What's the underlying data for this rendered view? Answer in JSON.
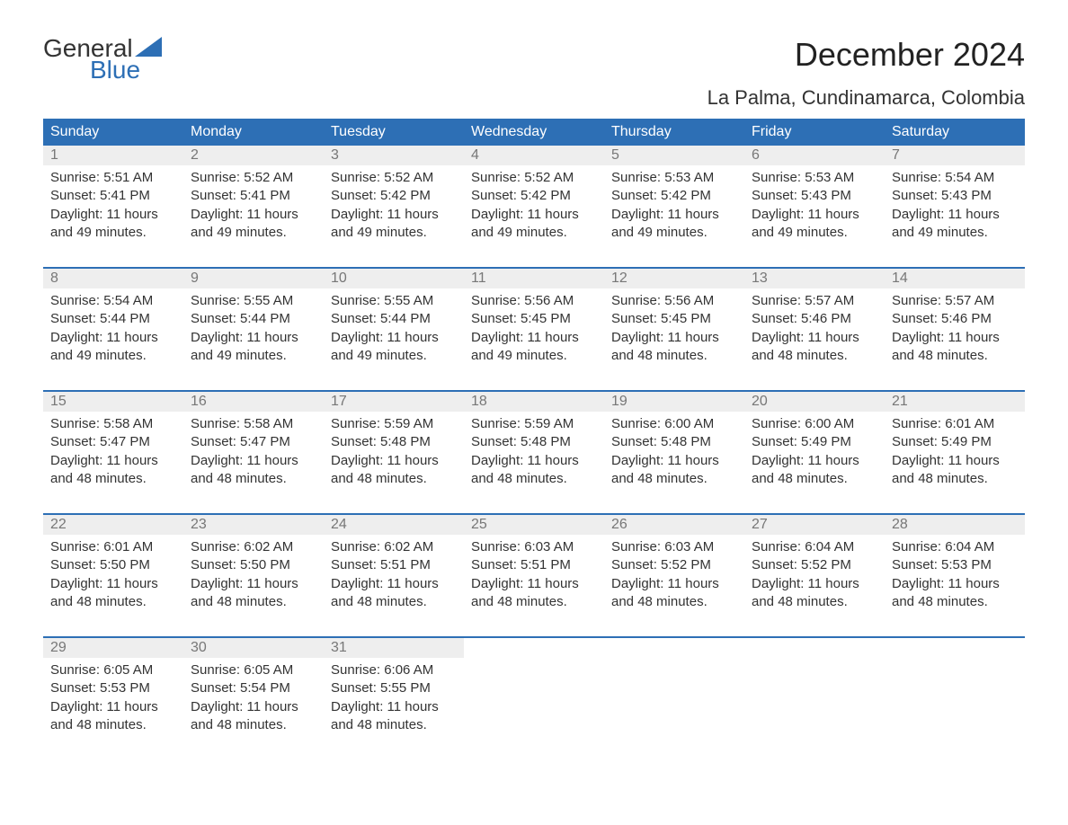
{
  "brand": {
    "part1": "General",
    "part2": "Blue",
    "sail_color": "#2d6fb5"
  },
  "title": "December 2024",
  "location": "La Palma, Cundinamarca, Colombia",
  "colors": {
    "header_bg": "#2d6fb5",
    "header_text": "#ffffff",
    "daynum_bg": "#eeeeee",
    "daynum_text": "#777777",
    "body_text": "#333333",
    "divider": "#2d6fb5",
    "page_bg": "#ffffff"
  },
  "typography": {
    "title_fontsize": 36,
    "location_fontsize": 22,
    "dow_fontsize": 16,
    "daynum_fontsize": 16,
    "detail_fontsize": 15
  },
  "days_of_week": [
    "Sunday",
    "Monday",
    "Tuesday",
    "Wednesday",
    "Thursday",
    "Friday",
    "Saturday"
  ],
  "weeks": [
    [
      {
        "n": "1",
        "sr": "Sunrise: 5:51 AM",
        "ss": "Sunset: 5:41 PM",
        "d1": "Daylight: 11 hours",
        "d2": "and 49 minutes."
      },
      {
        "n": "2",
        "sr": "Sunrise: 5:52 AM",
        "ss": "Sunset: 5:41 PM",
        "d1": "Daylight: 11 hours",
        "d2": "and 49 minutes."
      },
      {
        "n": "3",
        "sr": "Sunrise: 5:52 AM",
        "ss": "Sunset: 5:42 PM",
        "d1": "Daylight: 11 hours",
        "d2": "and 49 minutes."
      },
      {
        "n": "4",
        "sr": "Sunrise: 5:52 AM",
        "ss": "Sunset: 5:42 PM",
        "d1": "Daylight: 11 hours",
        "d2": "and 49 minutes."
      },
      {
        "n": "5",
        "sr": "Sunrise: 5:53 AM",
        "ss": "Sunset: 5:42 PM",
        "d1": "Daylight: 11 hours",
        "d2": "and 49 minutes."
      },
      {
        "n": "6",
        "sr": "Sunrise: 5:53 AM",
        "ss": "Sunset: 5:43 PM",
        "d1": "Daylight: 11 hours",
        "d2": "and 49 minutes."
      },
      {
        "n": "7",
        "sr": "Sunrise: 5:54 AM",
        "ss": "Sunset: 5:43 PM",
        "d1": "Daylight: 11 hours",
        "d2": "and 49 minutes."
      }
    ],
    [
      {
        "n": "8",
        "sr": "Sunrise: 5:54 AM",
        "ss": "Sunset: 5:44 PM",
        "d1": "Daylight: 11 hours",
        "d2": "and 49 minutes."
      },
      {
        "n": "9",
        "sr": "Sunrise: 5:55 AM",
        "ss": "Sunset: 5:44 PM",
        "d1": "Daylight: 11 hours",
        "d2": "and 49 minutes."
      },
      {
        "n": "10",
        "sr": "Sunrise: 5:55 AM",
        "ss": "Sunset: 5:44 PM",
        "d1": "Daylight: 11 hours",
        "d2": "and 49 minutes."
      },
      {
        "n": "11",
        "sr": "Sunrise: 5:56 AM",
        "ss": "Sunset: 5:45 PM",
        "d1": "Daylight: 11 hours",
        "d2": "and 49 minutes."
      },
      {
        "n": "12",
        "sr": "Sunrise: 5:56 AM",
        "ss": "Sunset: 5:45 PM",
        "d1": "Daylight: 11 hours",
        "d2": "and 48 minutes."
      },
      {
        "n": "13",
        "sr": "Sunrise: 5:57 AM",
        "ss": "Sunset: 5:46 PM",
        "d1": "Daylight: 11 hours",
        "d2": "and 48 minutes."
      },
      {
        "n": "14",
        "sr": "Sunrise: 5:57 AM",
        "ss": "Sunset: 5:46 PM",
        "d1": "Daylight: 11 hours",
        "d2": "and 48 minutes."
      }
    ],
    [
      {
        "n": "15",
        "sr": "Sunrise: 5:58 AM",
        "ss": "Sunset: 5:47 PM",
        "d1": "Daylight: 11 hours",
        "d2": "and 48 minutes."
      },
      {
        "n": "16",
        "sr": "Sunrise: 5:58 AM",
        "ss": "Sunset: 5:47 PM",
        "d1": "Daylight: 11 hours",
        "d2": "and 48 minutes."
      },
      {
        "n": "17",
        "sr": "Sunrise: 5:59 AM",
        "ss": "Sunset: 5:48 PM",
        "d1": "Daylight: 11 hours",
        "d2": "and 48 minutes."
      },
      {
        "n": "18",
        "sr": "Sunrise: 5:59 AM",
        "ss": "Sunset: 5:48 PM",
        "d1": "Daylight: 11 hours",
        "d2": "and 48 minutes."
      },
      {
        "n": "19",
        "sr": "Sunrise: 6:00 AM",
        "ss": "Sunset: 5:48 PM",
        "d1": "Daylight: 11 hours",
        "d2": "and 48 minutes."
      },
      {
        "n": "20",
        "sr": "Sunrise: 6:00 AM",
        "ss": "Sunset: 5:49 PM",
        "d1": "Daylight: 11 hours",
        "d2": "and 48 minutes."
      },
      {
        "n": "21",
        "sr": "Sunrise: 6:01 AM",
        "ss": "Sunset: 5:49 PM",
        "d1": "Daylight: 11 hours",
        "d2": "and 48 minutes."
      }
    ],
    [
      {
        "n": "22",
        "sr": "Sunrise: 6:01 AM",
        "ss": "Sunset: 5:50 PM",
        "d1": "Daylight: 11 hours",
        "d2": "and 48 minutes."
      },
      {
        "n": "23",
        "sr": "Sunrise: 6:02 AM",
        "ss": "Sunset: 5:50 PM",
        "d1": "Daylight: 11 hours",
        "d2": "and 48 minutes."
      },
      {
        "n": "24",
        "sr": "Sunrise: 6:02 AM",
        "ss": "Sunset: 5:51 PM",
        "d1": "Daylight: 11 hours",
        "d2": "and 48 minutes."
      },
      {
        "n": "25",
        "sr": "Sunrise: 6:03 AM",
        "ss": "Sunset: 5:51 PM",
        "d1": "Daylight: 11 hours",
        "d2": "and 48 minutes."
      },
      {
        "n": "26",
        "sr": "Sunrise: 6:03 AM",
        "ss": "Sunset: 5:52 PM",
        "d1": "Daylight: 11 hours",
        "d2": "and 48 minutes."
      },
      {
        "n": "27",
        "sr": "Sunrise: 6:04 AM",
        "ss": "Sunset: 5:52 PM",
        "d1": "Daylight: 11 hours",
        "d2": "and 48 minutes."
      },
      {
        "n": "28",
        "sr": "Sunrise: 6:04 AM",
        "ss": "Sunset: 5:53 PM",
        "d1": "Daylight: 11 hours",
        "d2": "and 48 minutes."
      }
    ],
    [
      {
        "n": "29",
        "sr": "Sunrise: 6:05 AM",
        "ss": "Sunset: 5:53 PM",
        "d1": "Daylight: 11 hours",
        "d2": "and 48 minutes."
      },
      {
        "n": "30",
        "sr": "Sunrise: 6:05 AM",
        "ss": "Sunset: 5:54 PM",
        "d1": "Daylight: 11 hours",
        "d2": "and 48 minutes."
      },
      {
        "n": "31",
        "sr": "Sunrise: 6:06 AM",
        "ss": "Sunset: 5:55 PM",
        "d1": "Daylight: 11 hours",
        "d2": "and 48 minutes."
      },
      null,
      null,
      null,
      null
    ]
  ]
}
